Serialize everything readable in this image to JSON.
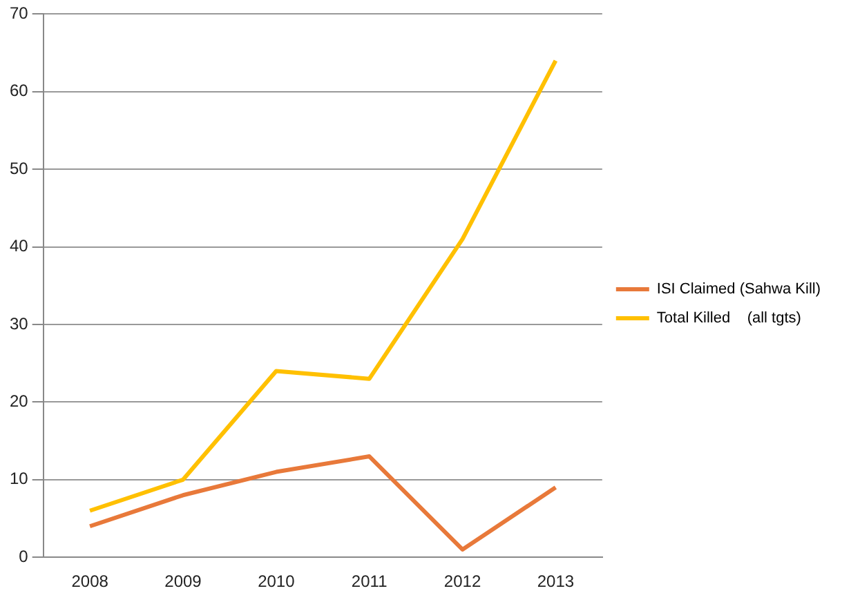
{
  "chart_data": {
    "type": "line",
    "categories": [
      "2008",
      "2009",
      "2010",
      "2011",
      "2012",
      "2013"
    ],
    "series": [
      {
        "name": "ISI Claimed (Sahwa Kill)",
        "color": "#e8793a",
        "values": [
          4,
          8,
          11,
          13,
          1,
          9
        ]
      },
      {
        "name": "Total Killed    (all tgts)",
        "color": "#ffc000",
        "values": [
          6,
          10,
          24,
          23,
          41,
          64
        ]
      }
    ],
    "ylim": [
      0,
      70
    ],
    "yticks": [
      0,
      10,
      20,
      30,
      40,
      50,
      60,
      70
    ],
    "grid": "y",
    "legend": "right",
    "marker": "none"
  }
}
